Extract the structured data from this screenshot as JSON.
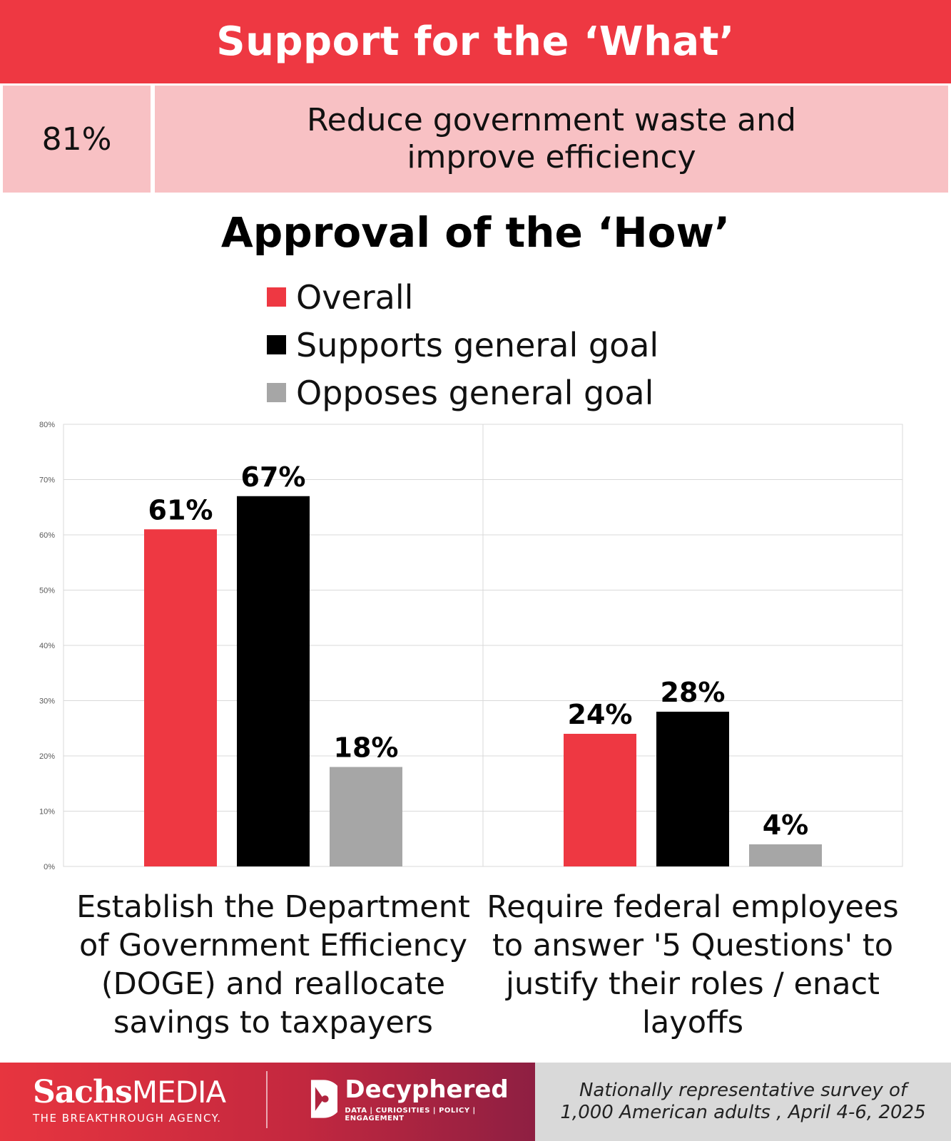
{
  "header": {
    "title": "Support for the ‘What’"
  },
  "support": {
    "percent": "81%",
    "text": "Reduce government waste and improve efficiency"
  },
  "section_title": "Approval of the ‘How’",
  "legend": [
    {
      "label": "Overall",
      "color": "#ee3842"
    },
    {
      "label": "Supports general goal",
      "color": "#000000"
    },
    {
      "label": "Opposes general goal",
      "color": "#a6a6a6"
    }
  ],
  "chart_data": {
    "type": "bar",
    "title": "",
    "xlabel": "",
    "ylabel": "",
    "ylim": [
      0,
      80
    ],
    "yticks": [
      "0%",
      "10%",
      "20%",
      "30%",
      "40%",
      "50%",
      "60%",
      "70%",
      "80%"
    ],
    "grid": true,
    "legend_position": "top",
    "categories": [
      "Establish the Department of Government Efficiency (DOGE) and reallocate savings to taxpayers",
      "Require federal employees to answer '5 Questions' to justify their roles / enact layoffs"
    ],
    "series": [
      {
        "name": "Overall",
        "color": "#ee3842",
        "values": [
          61,
          24
        ],
        "labels": [
          "61%",
          "24%"
        ]
      },
      {
        "name": "Supports general goal",
        "color": "#000000",
        "values": [
          67,
          28
        ],
        "labels": [
          "67%",
          "28%"
        ]
      },
      {
        "name": "Opposes general goal",
        "color": "#a6a6a6",
        "values": [
          18,
          4
        ],
        "labels": [
          "18%",
          "4%"
        ]
      }
    ]
  },
  "footer": {
    "brand1_main": "Sachs",
    "brand1_media": "MEDIA",
    "brand1_tagline": "THE BREAKTHROUGH AGENCY.",
    "brand2_name": "Decyphered",
    "brand2_tagline": "DATA | CURIOSITIES | POLICY | ENGAGEMENT",
    "note": "Nationally representative survey of 1,000 American adults , April 4-6, 2025"
  }
}
